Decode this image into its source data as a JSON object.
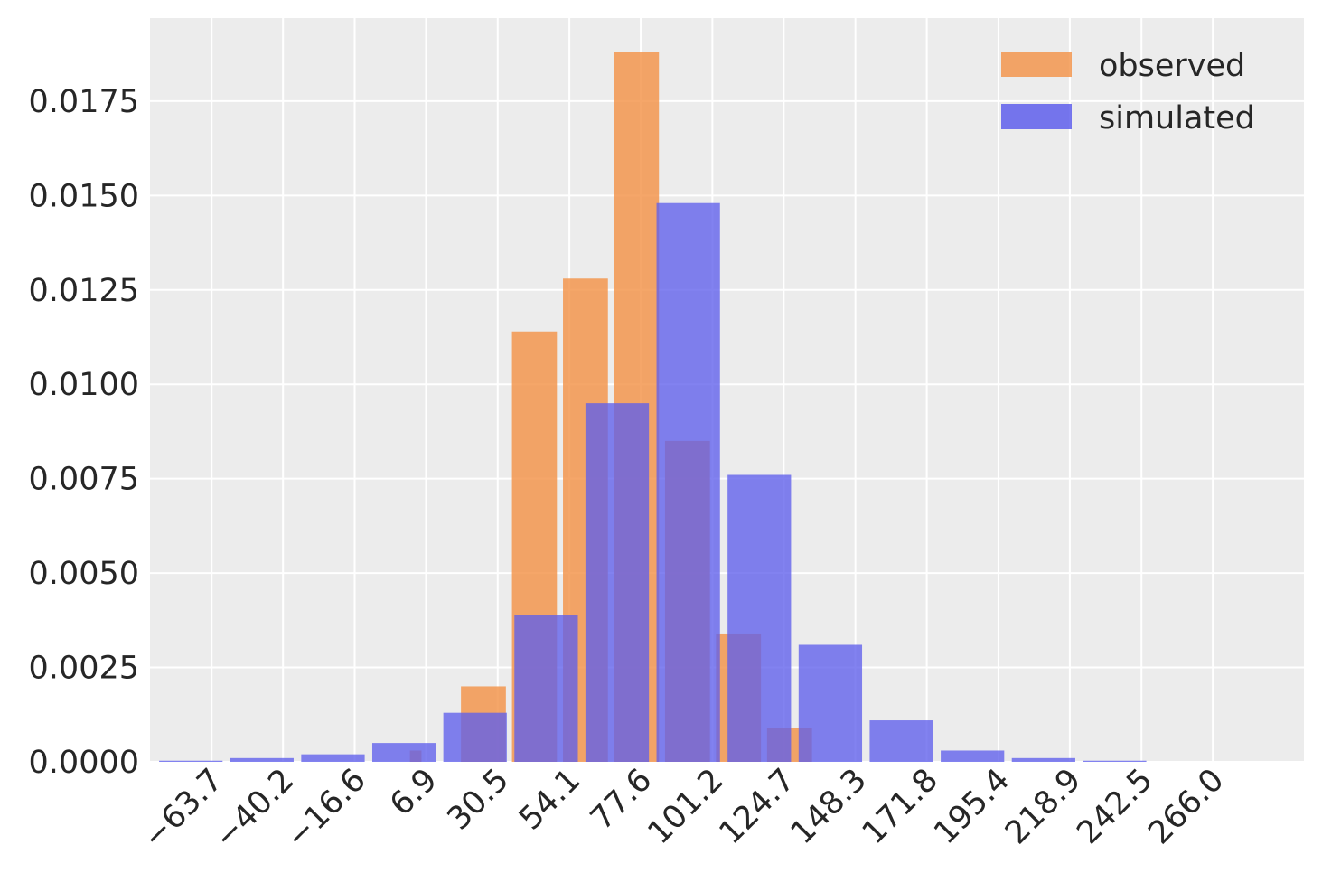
{
  "chart_data": {
    "type": "bar",
    "title": "",
    "xlabel": "",
    "ylabel": "",
    "grid": true,
    "legend_position": "top-right",
    "colors": {
      "background": "#ececec",
      "grid": "#ffffff",
      "observed": "#f3964f",
      "simulated": "#5f5fec",
      "overlap": "#7d5fbf"
    },
    "ylim": [
      0,
      0.0197
    ],
    "xlim": [
      -84,
      296
    ],
    "xticks": [
      -63.7,
      -40.2,
      -16.6,
      6.9,
      30.5,
      54.1,
      77.6,
      101.2,
      124.7,
      148.3,
      171.8,
      195.4,
      218.9,
      242.5,
      266.0
    ],
    "xtick_labels": [
      "−63.7",
      "−40.2",
      "−16.6",
      "6.9",
      "30.5",
      "54.1",
      "77.6",
      "101.2",
      "124.7",
      "148.3",
      "171.8",
      "195.4",
      "218.9",
      "242.5",
      "266.0"
    ],
    "yticks": [
      0.0,
      0.0025,
      0.005,
      0.0075,
      0.01,
      0.0125,
      0.015,
      0.0175
    ],
    "ytick_labels": [
      "0.0000",
      "0.0025",
      "0.0050",
      "0.0075",
      "0.0100",
      "0.0125",
      "0.0150",
      "0.0175"
    ],
    "series": [
      {
        "name": "observed",
        "bars": [
          {
            "left": 1.6,
            "right": 5.4,
            "value": 0.0003
          },
          {
            "left": 18.4,
            "right": 33.2,
            "value": 0.002
          },
          {
            "left": 35.2,
            "right": 50.0,
            "value": 0.0114
          },
          {
            "left": 52.0,
            "right": 66.8,
            "value": 0.0128
          },
          {
            "left": 68.8,
            "right": 83.6,
            "value": 0.0188
          },
          {
            "left": 85.6,
            "right": 100.4,
            "value": 0.0085
          },
          {
            "left": 102.4,
            "right": 117.2,
            "value": 0.0034
          },
          {
            "left": 119.2,
            "right": 134.0,
            "value": 0.0009
          }
        ]
      },
      {
        "name": "simulated",
        "bars": [
          {
            "left": -81.0,
            "right": -60.1,
            "value": 3e-05
          },
          {
            "left": -57.6,
            "right": -36.7,
            "value": 0.0001
          },
          {
            "left": -34.2,
            "right": -13.3,
            "value": 0.0002
          },
          {
            "left": -10.8,
            "right": 10.1,
            "value": 0.0005
          },
          {
            "left": 12.6,
            "right": 33.5,
            "value": 0.0013
          },
          {
            "left": 36.0,
            "right": 56.9,
            "value": 0.0039
          },
          {
            "left": 59.4,
            "right": 80.3,
            "value": 0.0095
          },
          {
            "left": 82.8,
            "right": 103.7,
            "value": 0.0148
          },
          {
            "left": 106.2,
            "right": 127.1,
            "value": 0.0076
          },
          {
            "left": 129.6,
            "right": 150.5,
            "value": 0.0031
          },
          {
            "left": 153.0,
            "right": 173.9,
            "value": 0.0011
          },
          {
            "left": 176.4,
            "right": 197.3,
            "value": 0.0003
          },
          {
            "left": 199.8,
            "right": 220.7,
            "value": 0.0001
          },
          {
            "left": 223.2,
            "right": 244.1,
            "value": 3e-05
          }
        ]
      }
    ]
  }
}
